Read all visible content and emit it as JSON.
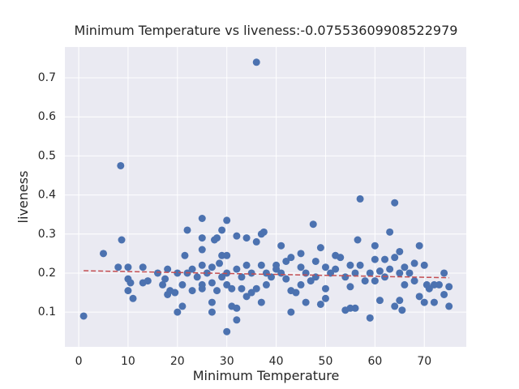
{
  "chart_data": {
    "type": "scatter",
    "title": "Minimum Temperature vs liveness:-0.07553609908522979",
    "x_label": "Minimum Temperature",
    "y_label": "liveness",
    "color": "#4c72b0",
    "x": [
      1,
      5,
      8,
      8.5,
      8.7,
      10,
      10,
      10,
      10.5,
      11,
      13,
      13,
      14,
      16,
      17,
      17.5,
      18,
      18,
      18.5,
      19.5,
      20,
      20,
      21,
      21,
      21.5,
      22,
      22,
      23,
      23,
      24,
      25,
      25,
      25,
      25,
      25,
      25,
      26,
      27,
      27,
      27,
      27,
      27.5,
      28,
      28,
      28.5,
      29,
      29,
      29,
      30,
      30,
      30,
      30,
      30,
      31,
      31,
      32,
      32,
      32,
      32,
      33,
      33,
      34,
      34,
      34,
      35,
      35,
      36,
      36,
      36,
      37,
      37,
      37,
      37.5,
      38,
      38,
      39,
      40,
      40,
      41,
      41,
      42,
      42,
      43,
      43,
      43,
      44,
      45,
      45,
      45,
      46,
      46,
      47,
      47.5,
      48,
      48,
      49,
      49,
      50,
      50,
      50,
      51,
      52,
      52,
      53,
      54,
      54,
      55,
      55,
      55,
      56,
      56,
      56.5,
      57,
      57,
      58,
      59,
      59,
      60,
      60,
      60,
      61,
      61,
      62,
      62,
      63,
      63,
      64,
      64,
      64,
      65,
      65,
      65,
      65.5,
      66,
      66,
      67,
      68,
      68,
      69,
      69,
      70,
      70,
      70.5,
      71,
      72,
      72,
      73,
      74,
      74,
      75,
      75
    ],
    "values": [
      0.09,
      0.25,
      0.215,
      0.475,
      0.285,
      0.215,
      0.185,
      0.155,
      0.175,
      0.135,
      0.215,
      0.175,
      0.18,
      0.2,
      0.17,
      0.185,
      0.21,
      0.145,
      0.155,
      0.15,
      0.1,
      0.2,
      0.115,
      0.17,
      0.245,
      0.31,
      0.2,
      0.155,
      0.21,
      0.19,
      0.34,
      0.29,
      0.26,
      0.22,
      0.17,
      0.16,
      0.2,
      0.215,
      0.1,
      0.125,
      0.175,
      0.285,
      0.155,
      0.29,
      0.225,
      0.31,
      0.245,
      0.19,
      0.335,
      0.245,
      0.05,
      0.2,
      0.17,
      0.115,
      0.16,
      0.295,
      0.21,
      0.11,
      0.08,
      0.19,
      0.16,
      0.29,
      0.22,
      0.14,
      0.2,
      0.15,
      0.74,
      0.28,
      0.16,
      0.3,
      0.22,
      0.125,
      0.305,
      0.2,
      0.17,
      0.19,
      0.22,
      0.21,
      0.27,
      0.2,
      0.23,
      0.185,
      0.24,
      0.155,
      0.1,
      0.15,
      0.25,
      0.215,
      0.17,
      0.2,
      0.125,
      0.18,
      0.325,
      0.23,
      0.19,
      0.265,
      0.12,
      0.215,
      0.16,
      0.135,
      0.2,
      0.21,
      0.245,
      0.24,
      0.19,
      0.105,
      0.11,
      0.22,
      0.165,
      0.11,
      0.2,
      0.285,
      0.39,
      0.22,
      0.18,
      0.2,
      0.085,
      0.27,
      0.235,
      0.18,
      0.205,
      0.13,
      0.19,
      0.235,
      0.305,
      0.21,
      0.38,
      0.24,
      0.115,
      0.255,
      0.2,
      0.13,
      0.105,
      0.215,
      0.17,
      0.2,
      0.225,
      0.18,
      0.27,
      0.14,
      0.22,
      0.125,
      0.17,
      0.16,
      0.125,
      0.17,
      0.17,
      0.2,
      0.145,
      0.115,
      0.165
    ],
    "trend": {
      "x": [
        1,
        75
      ],
      "values": [
        0.206,
        0.188
      ],
      "color": "#c44e52"
    },
    "xlim": [
      -2.8,
      78.5
    ],
    "ylim": [
      0.011,
      0.779
    ],
    "xticks": [
      0,
      10,
      20,
      30,
      40,
      50,
      60,
      70
    ],
    "yticks": [
      0.1,
      0.2,
      0.3,
      0.4,
      0.5,
      0.6,
      0.7
    ],
    "grid": true
  }
}
